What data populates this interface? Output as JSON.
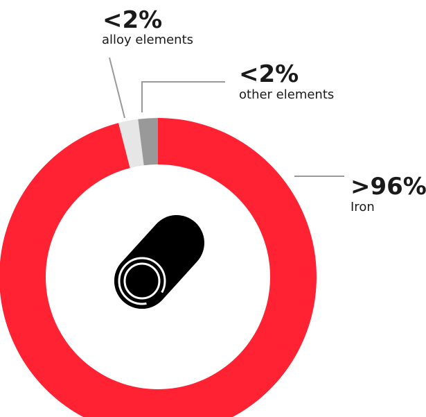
{
  "chart_data": {
    "type": "donut",
    "slices": [
      {
        "name": "Iron",
        "percent_label": ">96%",
        "value": 96,
        "color": "#ff2233"
      },
      {
        "name": "alloy elements",
        "percent_label": "<2%",
        "value": 2,
        "color": "#e6e6e6"
      },
      {
        "name": "other elements",
        "percent_label": "<2%",
        "value": 2,
        "color": "#999999"
      }
    ],
    "center_icon": "steel-pipe-icon"
  },
  "labels": {
    "iron": {
      "pct": ">96%",
      "desc": "Iron"
    },
    "alloy": {
      "pct": "<2%",
      "desc": "alloy elements"
    },
    "other": {
      "pct": "<2%",
      "desc": "other elements"
    }
  },
  "colors": {
    "iron": "#ff2233",
    "alloy": "#e6e6e6",
    "other": "#999999",
    "leader": "#999999",
    "text": "#1a1a1a"
  }
}
